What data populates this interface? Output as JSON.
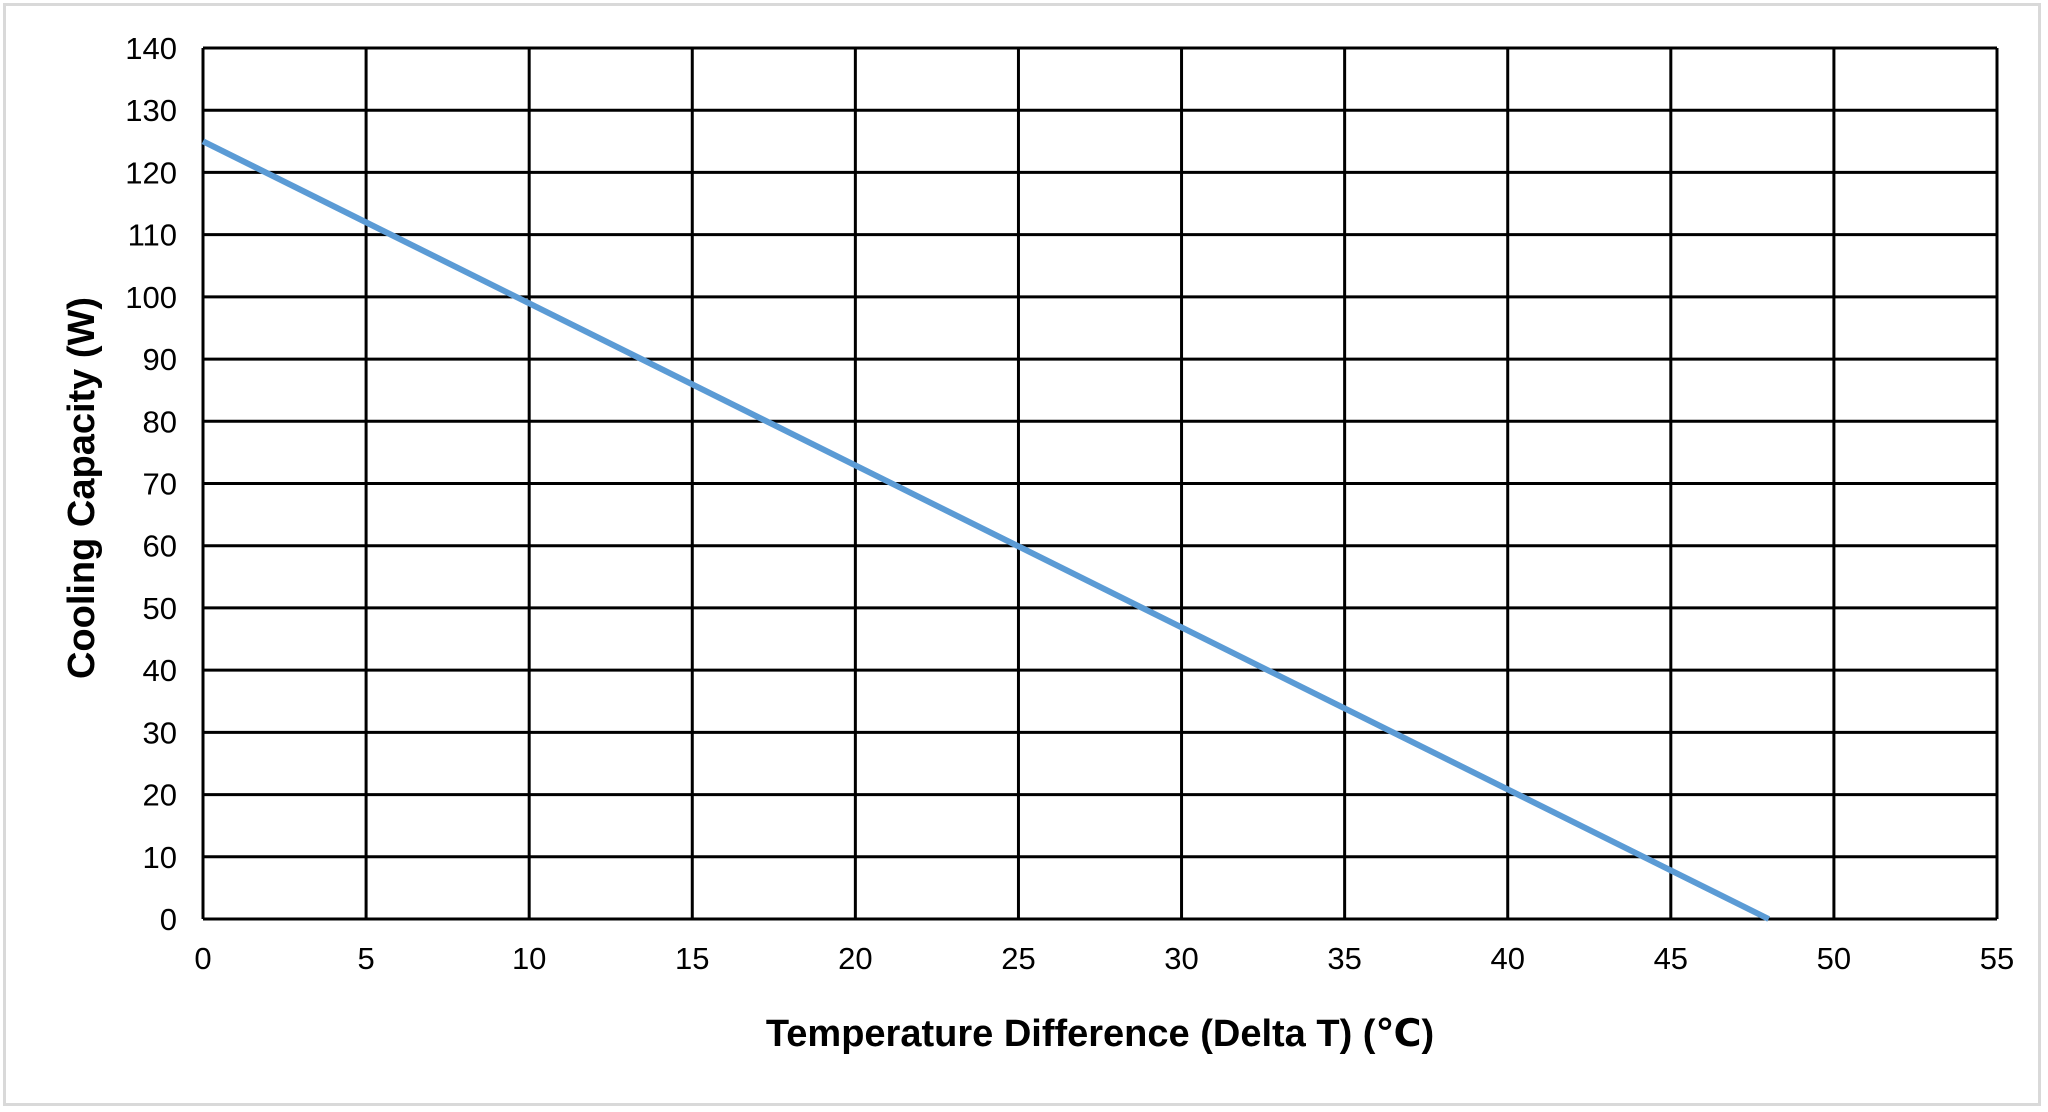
{
  "chart_data": {
    "type": "line",
    "title": "",
    "xlabel": "Temperature Difference (Delta T) (℃)",
    "ylabel": "Cooling Capacity (W)",
    "xlim": [
      0,
      55
    ],
    "ylim": [
      0,
      140
    ],
    "xticks": [
      0,
      5,
      10,
      15,
      20,
      25,
      30,
      35,
      40,
      45,
      50,
      55
    ],
    "yticks": [
      0,
      10,
      20,
      30,
      40,
      50,
      60,
      70,
      80,
      90,
      100,
      110,
      120,
      130,
      140
    ],
    "grid": true,
    "legend": "none",
    "series": [
      {
        "name": "Cooling Capacity",
        "color": "#5b9bd5",
        "x": [
          0,
          48
        ],
        "y": [
          125,
          0
        ]
      }
    ]
  }
}
